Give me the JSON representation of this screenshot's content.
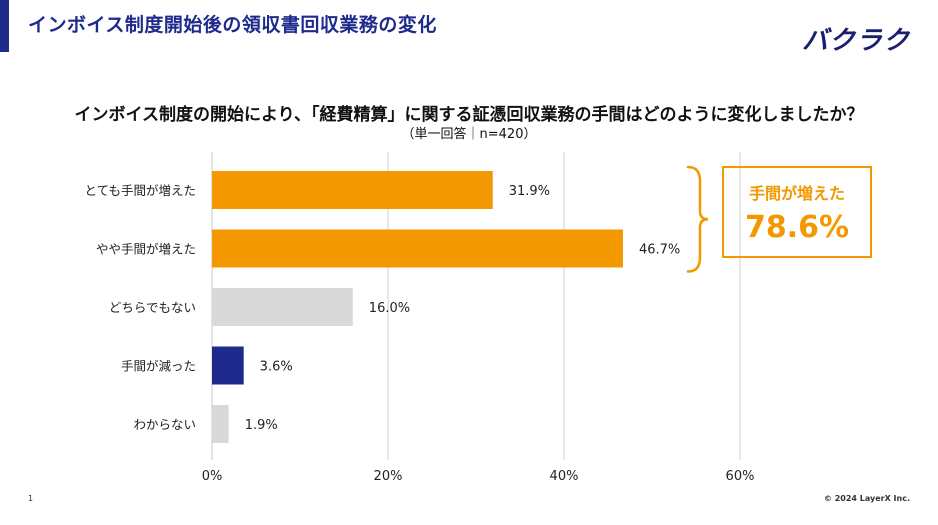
{
  "header": {
    "title": "インボイス制度開始後の領収書回収業務の変化",
    "logo": "バクラク"
  },
  "question": "インボイス制度の開始により、「経費精算」に関する証憑回収業務の手間はどのように変化しましたか？",
  "subtitle": "（単一回答｜n=420）",
  "callout": {
    "label": "手間が増えた",
    "value": "78.6%"
  },
  "footer": {
    "page": "1",
    "copyright": "© 2024 LayerX Inc."
  },
  "colors": {
    "orange": "#f39800",
    "gray": "#d9d9d9",
    "navy": "#1e2a8c",
    "grid": "#d0d0d0"
  },
  "chart_data": {
    "type": "bar",
    "orientation": "horizontal",
    "title": "",
    "xlabel": "",
    "ylabel": "",
    "xlim": [
      0,
      60
    ],
    "grid": true,
    "categories": [
      "とても手間が増えた",
      "やや手間が増えた",
      "どちらでもない",
      "手間が減った",
      "わからない"
    ],
    "values": [
      31.9,
      46.7,
      16.0,
      3.6,
      1.9
    ],
    "value_labels": [
      "31.9%",
      "46.7%",
      "16.0%",
      "3.6%",
      "1.9%"
    ],
    "bar_colors": [
      "orange",
      "orange",
      "gray",
      "navy",
      "gray"
    ],
    "ticks": [
      0,
      20,
      40,
      60
    ],
    "tick_labels": [
      "0%",
      "20%",
      "40%",
      "60%"
    ]
  }
}
